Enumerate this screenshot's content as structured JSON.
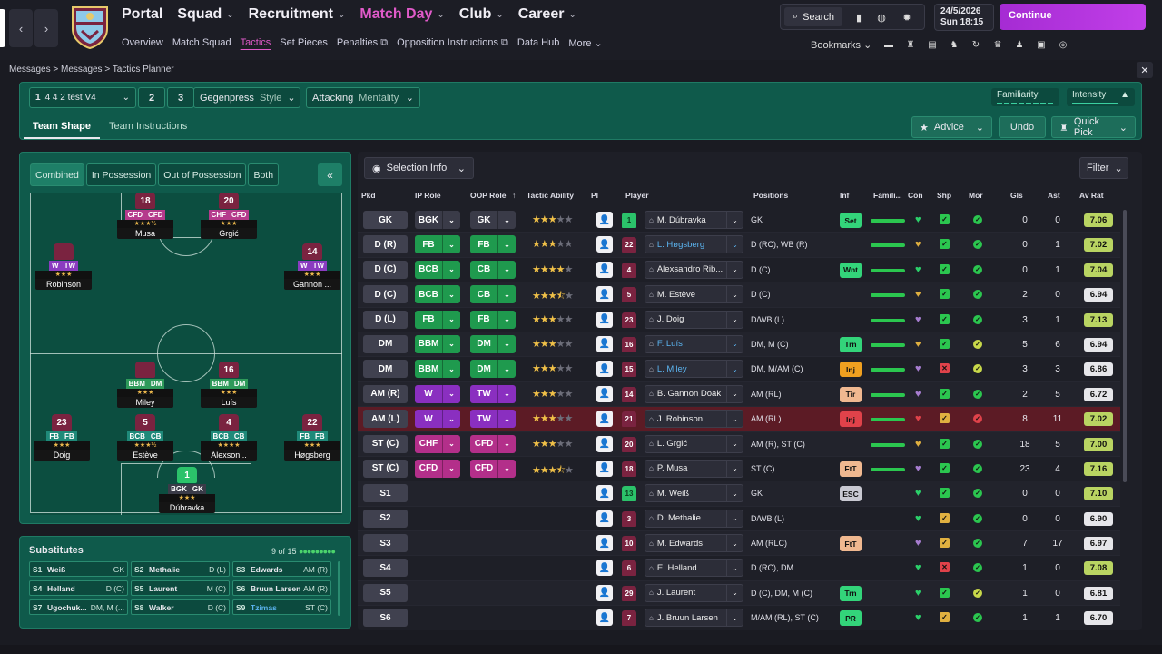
{
  "nav": {
    "back_icon": "chevron-left-icon",
    "forward_icon": "chevron-right-icon",
    "main": [
      {
        "label": "Portal",
        "active": false
      },
      {
        "label": "Squad",
        "active": false
      },
      {
        "label": "Recruitment",
        "active": false
      },
      {
        "label": "Match Day",
        "active": true
      },
      {
        "label": "Club",
        "active": false
      },
      {
        "label": "Career",
        "active": false
      }
    ],
    "sub": [
      {
        "label": "Overview",
        "active": false
      },
      {
        "label": "Match Squad",
        "active": false
      },
      {
        "label": "Tactics",
        "active": true
      },
      {
        "label": "Set Pieces",
        "active": false
      },
      {
        "label": "Penalties",
        "active": false
      },
      {
        "label": "Opposition Instructions",
        "active": false
      },
      {
        "label": "Data Hub",
        "active": false
      },
      {
        "label": "More",
        "active": false
      }
    ],
    "search_label": "Search",
    "date": "24/5/2026",
    "day_time": "Sun  18:15",
    "continue_label": "Continue",
    "bookmarks_label": "Bookmarks"
  },
  "breadcrumb": [
    "Messages",
    "Messages",
    "Tactics Planner"
  ],
  "tactic": {
    "slot": "1",
    "name": "4 4 2 test V4",
    "slot2": "2",
    "slot3": "3",
    "style_value": "Gegenpress",
    "style_label": "Style",
    "mentality_value": "Attacking",
    "mentality_label": "Mentality",
    "familiarity_label": "Familiarity",
    "intensity_label": "Intensity",
    "tabs": [
      "Team Shape",
      "Team Instructions"
    ],
    "advice_label": "Advice",
    "undo_label": "Undo",
    "quickpick_label": "Quick Pick"
  },
  "pitch": {
    "view_tabs": [
      "Combined",
      "In Possession",
      "Out of Possession",
      "Both"
    ],
    "players": [
      {
        "num": "18",
        "roles": [
          "CFD",
          "CFD"
        ],
        "stars": "★★★½",
        "name": "Musa",
        "shirt": "outfield",
        "role_colors": [
          "#b53a8c",
          "#b53a8c"
        ]
      },
      {
        "num": "20",
        "roles": [
          "CHF",
          "CFD"
        ],
        "stars": "★★★",
        "name": "Grgić",
        "shirt": "outfield",
        "role_colors": [
          "#b53a8c",
          "#b53a8c"
        ]
      },
      {
        "num": "",
        "roles": [
          "W",
          "TW"
        ],
        "stars": "★★★",
        "name": "Robinson",
        "shirt": "outfield",
        "role_colors": [
          "#8a3cc0",
          "#8a3cc0"
        ]
      },
      {
        "num": "14",
        "roles": [
          "W",
          "TW"
        ],
        "stars": "★★★",
        "name": "Gannon ...",
        "shirt": "outfield",
        "role_colors": [
          "#8a3cc0",
          "#8a3cc0"
        ]
      },
      {
        "num": "",
        "roles": [
          "BBM",
          "DM"
        ],
        "stars": "★★★",
        "name": "Miley",
        "shirt": "outfield",
        "role_colors": [
          "#2e9a5a",
          "#2e9a5a"
        ]
      },
      {
        "num": "16",
        "roles": [
          "BBM",
          "DM"
        ],
        "stars": "★★★",
        "name": "Luís",
        "shirt": "outfield",
        "role_colors": [
          "#2e9a5a",
          "#2e9a5a"
        ]
      },
      {
        "num": "23",
        "roles": [
          "FB",
          "FB"
        ],
        "stars": "★★★",
        "name": "Doig",
        "shirt": "outfield",
        "role_colors": [
          "#1f8a7a",
          "#1f8a7a"
        ]
      },
      {
        "num": "5",
        "roles": [
          "BCB",
          "CB"
        ],
        "stars": "★★★½",
        "name": "Estève",
        "shirt": "outfield",
        "role_colors": [
          "#1f8a7a",
          "#1f8a7a"
        ]
      },
      {
        "num": "4",
        "roles": [
          "BCB",
          "CB"
        ],
        "stars": "★★★★",
        "name": "Alexson...",
        "shirt": "outfield",
        "role_colors": [
          "#1f8a7a",
          "#1f8a7a"
        ]
      },
      {
        "num": "22",
        "roles": [
          "FB",
          "FB"
        ],
        "stars": "★★★",
        "name": "Høgsberg",
        "shirt": "outfield",
        "role_colors": [
          "#1f8a7a",
          "#1f8a7a"
        ]
      },
      {
        "num": "1",
        "roles": [
          "BGK",
          "GK"
        ],
        "stars": "★★★",
        "name": "Dúbravka",
        "shirt": "gk",
        "role_colors": [
          "#3a3b48",
          "#3a3b48"
        ]
      }
    ]
  },
  "substitutes": {
    "title": "Substitutes",
    "count": "9 of 15",
    "list": [
      {
        "slot": "S1",
        "name": "Weiß",
        "pos": "GK"
      },
      {
        "slot": "S2",
        "name": "Methalie",
        "pos": "D (L)"
      },
      {
        "slot": "S3",
        "name": "Edwards",
        "pos": "AM (R)"
      },
      {
        "slot": "S4",
        "name": "Helland",
        "pos": "D (C)"
      },
      {
        "slot": "S5",
        "name": "Laurent",
        "pos": "M (C)"
      },
      {
        "slot": "S6",
        "name": "Bruun Larsen",
        "pos": "AM (R)"
      },
      {
        "slot": "S7",
        "name": "Ugochuk...",
        "pos": "DM, M (..."
      },
      {
        "slot": "S8",
        "name": "Walker",
        "pos": "D (C)"
      },
      {
        "slot": "S9",
        "name": "Tzimas",
        "pos": "ST (C)"
      }
    ]
  },
  "table": {
    "selection_info_label": "Selection Info",
    "filter_label": "Filter",
    "headers": {
      "pkd": "Pkd",
      "ip": "IP Role",
      "oop": "OOP Role",
      "ta": "Tactic Ability",
      "pi": "PI",
      "player": "Player",
      "positions": "Positions",
      "inf": "Inf",
      "fam": "Famili...",
      "con": "Con",
      "shp": "Shp",
      "mor": "Mor",
      "gls": "Gls",
      "ast": "Ast",
      "avr": "Av Rat"
    },
    "rows": [
      {
        "pkd": "GK",
        "ip": "BGK",
        "oop": "GK",
        "stars": 3,
        "num": "1",
        "gk": true,
        "name": "M. Dúbravka",
        "blue": false,
        "pos": "GK",
        "inf": "Set",
        "inf_color": "#33d47a",
        "gls": "0",
        "ast": "0",
        "avr": "7.06"
      },
      {
        "pkd": "D (R)",
        "ip": "FB",
        "oop": "FB",
        "stars": 3,
        "num": "22",
        "gk": false,
        "name": "L. Høgsberg",
        "blue": true,
        "pos": "D (RC), WB (R)",
        "inf": "",
        "inf_color": "",
        "gls": "0",
        "ast": "1",
        "avr": "7.02"
      },
      {
        "pkd": "D (C)",
        "ip": "BCB",
        "oop": "CB",
        "stars": 4,
        "num": "4",
        "gk": false,
        "name": "Alexsandro Rib...",
        "blue": false,
        "pos": "D (C)",
        "inf": "Wnt",
        "inf_color": "#33d47a",
        "gls": "0",
        "ast": "1",
        "avr": "7.04"
      },
      {
        "pkd": "D (C)",
        "ip": "BCB",
        "oop": "CB",
        "stars": 3.5,
        "num": "5",
        "gk": false,
        "name": "M. Estève",
        "blue": false,
        "pos": "D (C)",
        "inf": "",
        "inf_color": "",
        "gls": "2",
        "ast": "0",
        "avr": "6.94"
      },
      {
        "pkd": "D (L)",
        "ip": "FB",
        "oop": "FB",
        "stars": 3,
        "num": "23",
        "gk": false,
        "name": "J. Doig",
        "blue": false,
        "pos": "D/WB (L)",
        "inf": "",
        "inf_color": "",
        "gls": "3",
        "ast": "1",
        "avr": "7.13"
      },
      {
        "pkd": "DM",
        "ip": "BBM",
        "oop": "DM",
        "stars": 3,
        "num": "16",
        "gk": false,
        "name": "F. Luís",
        "blue": true,
        "pos": "DM, M (C)",
        "inf": "Trn",
        "inf_color": "#33d47a",
        "gls": "5",
        "ast": "6",
        "avr": "6.94"
      },
      {
        "pkd": "DM",
        "ip": "BBM",
        "oop": "DM",
        "stars": 3,
        "num": "15",
        "gk": false,
        "name": "L. Miley",
        "blue": true,
        "pos": "DM, M/AM (C)",
        "inf": "Inj",
        "inf_color": "#f0a020",
        "gls": "3",
        "ast": "3",
        "avr": "6.86"
      },
      {
        "pkd": "AM (R)",
        "ip": "W",
        "oop": "TW",
        "stars": 3,
        "num": "14",
        "gk": false,
        "name": "B. Gannon Doak",
        "blue": false,
        "pos": "AM (RL)",
        "inf": "Tir",
        "inf_color": "#f0b890",
        "gls": "2",
        "ast": "5",
        "avr": "6.72"
      },
      {
        "pkd": "AM (L)",
        "ip": "W",
        "oop": "TW",
        "stars": 3,
        "num": "21",
        "gk": false,
        "name": "J. Robinson",
        "blue": false,
        "pos": "AM (RL)",
        "inf": "Inj",
        "inf_color": "#e0424a",
        "gls": "8",
        "ast": "11",
        "avr": "7.02"
      },
      {
        "pkd": "ST (C)",
        "ip": "CHF",
        "oop": "CFD",
        "stars": 3,
        "num": "20",
        "gk": false,
        "name": "L. Grgić",
        "blue": false,
        "pos": "AM (R), ST (C)",
        "inf": "",
        "inf_color": "",
        "gls": "18",
        "ast": "5",
        "avr": "7.00"
      },
      {
        "pkd": "ST (C)",
        "ip": "CFD",
        "oop": "CFD",
        "stars": 3.5,
        "num": "18",
        "gk": false,
        "name": "P. Musa",
        "blue": false,
        "pos": "ST (C)",
        "inf": "FtT",
        "inf_color": "#f0b890",
        "gls": "23",
        "ast": "4",
        "avr": "7.16"
      },
      {
        "pkd": "S1",
        "ip": "",
        "oop": "",
        "stars": 0,
        "num": "13",
        "gk": true,
        "name": "M. Weiß",
        "blue": false,
        "pos": "GK",
        "inf": "ESC",
        "inf_color": "#c9c9d2",
        "gls": "0",
        "ast": "0",
        "avr": "7.10"
      },
      {
        "pkd": "S2",
        "ip": "",
        "oop": "",
        "stars": 0,
        "num": "3",
        "gk": false,
        "name": "D. Methalie",
        "blue": false,
        "pos": "D/WB (L)",
        "inf": "",
        "inf_color": "",
        "gls": "0",
        "ast": "0",
        "avr": "6.90"
      },
      {
        "pkd": "S3",
        "ip": "",
        "oop": "",
        "stars": 0,
        "num": "10",
        "gk": false,
        "name": "M. Edwards",
        "blue": false,
        "pos": "AM (RLC)",
        "inf": "FtT",
        "inf_color": "#f0b890",
        "gls": "7",
        "ast": "17",
        "avr": "6.97"
      },
      {
        "pkd": "S4",
        "ip": "",
        "oop": "",
        "stars": 0,
        "num": "6",
        "gk": false,
        "name": "E. Helland",
        "blue": false,
        "pos": "D (RC), DM",
        "inf": "",
        "inf_color": "",
        "gls": "1",
        "ast": "0",
        "avr": "7.08"
      },
      {
        "pkd": "S5",
        "ip": "",
        "oop": "",
        "stars": 0,
        "num": "29",
        "gk": false,
        "name": "J. Laurent",
        "blue": false,
        "pos": "D (C), DM, M (C)",
        "inf": "Trn",
        "inf_color": "#33d47a",
        "gls": "1",
        "ast": "0",
        "avr": "6.81"
      },
      {
        "pkd": "S6",
        "ip": "",
        "oop": "",
        "stars": 0,
        "num": "7",
        "gk": false,
        "name": "J. Bruun Larsen",
        "blue": false,
        "pos": "M/AM (RL), ST (C)",
        "inf": "PR",
        "inf_color": "#33d47a",
        "gls": "1",
        "ast": "1",
        "avr": "6.70"
      }
    ]
  },
  "colors": {
    "accent": "#e05ac9",
    "panel": "#0f5a4b",
    "continue": "#b536de"
  }
}
